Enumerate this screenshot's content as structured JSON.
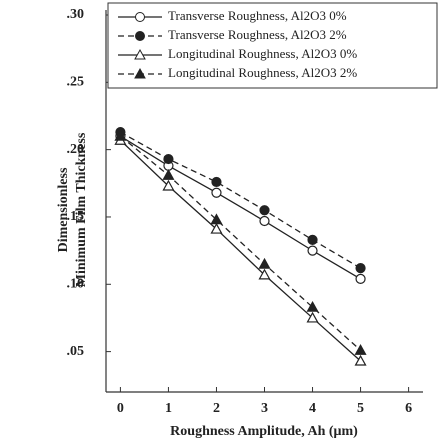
{
  "chart_data": {
    "type": "line",
    "x_label": "Roughness Amplitude, Ah (μm)",
    "y_label": [
      "Dimensionless",
      "Minimum Film Thickness"
    ],
    "x": [
      0,
      1,
      2,
      3,
      4,
      5
    ],
    "xlim": [
      -0.3,
      6.3
    ],
    "xticks": [
      0,
      1,
      2,
      3,
      4,
      5,
      6
    ],
    "ylim": [
      0.02,
      0.3
    ],
    "yticks": [
      {
        "value": 0.05,
        "label": ".05"
      },
      {
        "value": 0.1,
        "label": ".10"
      },
      {
        "value": 0.15,
        "label": ".15"
      },
      {
        "value": 0.2,
        "label": ".20"
      },
      {
        "value": 0.25,
        "label": ".25"
      },
      {
        "value": 0.3,
        "label": ".30"
      }
    ],
    "series": [
      {
        "name": "Transverse Roughness, Al2O3  0%",
        "color": "#222222",
        "marker": "circle",
        "filled": false,
        "dashed": false,
        "values": [
          0.21,
          0.188,
          0.168,
          0.147,
          0.125,
          0.104
        ]
      },
      {
        "name": "Transverse Roughness, Al2O3  2%",
        "color": "#222222",
        "marker": "circle",
        "filled": true,
        "dashed": true,
        "values": [
          0.213,
          0.193,
          0.176,
          0.155,
          0.133,
          0.112
        ]
      },
      {
        "name": "Longitudinal Roughness, Al2O3 0%",
        "color": "#222222",
        "marker": "triangle",
        "filled": false,
        "dashed": false,
        "values": [
          0.207,
          0.173,
          0.141,
          0.107,
          0.075,
          0.043
        ]
      },
      {
        "name": "Longitudinal Roughness, Al2O3  2%",
        "color": "#222222",
        "marker": "triangle",
        "filled": true,
        "dashed": true,
        "values": [
          0.21,
          0.181,
          0.148,
          0.115,
          0.083,
          0.051
        ]
      }
    ]
  }
}
